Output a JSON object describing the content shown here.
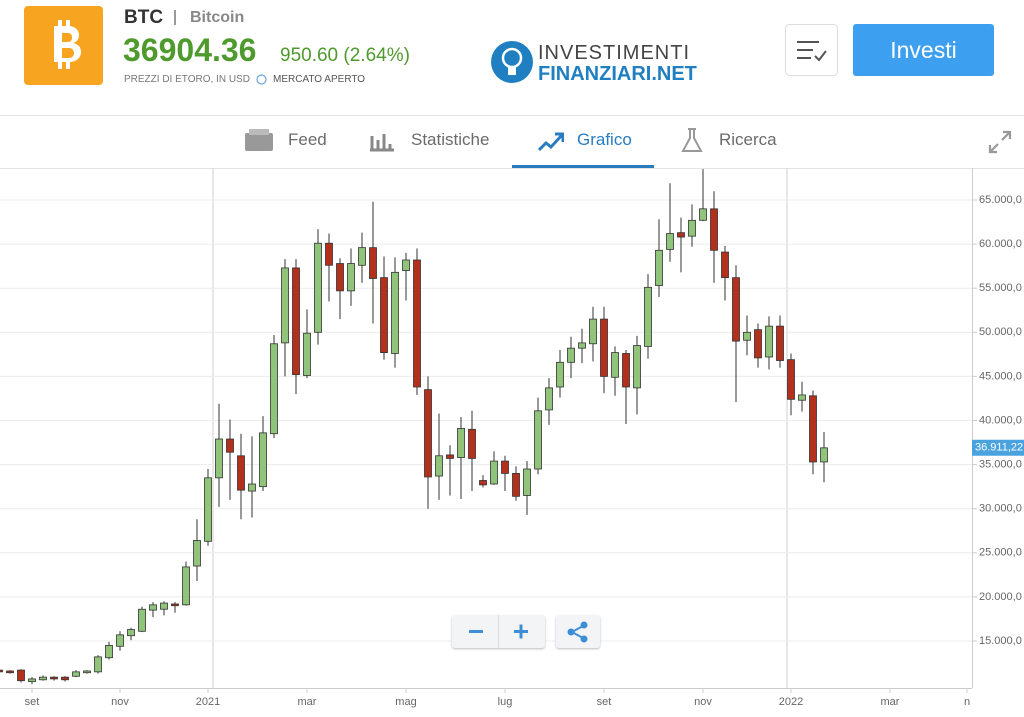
{
  "header": {
    "symbol": "BTC",
    "name": "Bitcoin",
    "price": "36904.36",
    "change": "950.60 (2.64%)",
    "source": "PREZZI DI ETORO, IN USD",
    "market": "MERCATO APERTO",
    "logo_top": "INVESTIMENTI",
    "logo_bottom": "FINANZIARI.NET",
    "button": "Investi"
  },
  "tabs": [
    "Feed",
    "Statistiche",
    "Grafico",
    "Ricerca"
  ],
  "chart_data": {
    "type": "candlestick",
    "up_color": "#8fc47a",
    "down_color": "#b3301c",
    "categories": [
      null,
      null,
      null,
      "set",
      null,
      null,
      null,
      null,
      null,
      null,
      null,
      "nov",
      null,
      null,
      null,
      null,
      null,
      null,
      null,
      "2021",
      null,
      null,
      null,
      null,
      null,
      null,
      null,
      null,
      "mar",
      null,
      null,
      null,
      null,
      null,
      null,
      null,
      null,
      "mag",
      null,
      null,
      null,
      null,
      null,
      null,
      null,
      null,
      "lug",
      null,
      null,
      null,
      null,
      null,
      null,
      null,
      null,
      "set",
      null,
      null,
      null,
      null,
      null,
      null,
      null,
      null,
      "nov",
      null,
      null,
      null,
      null,
      null,
      null,
      null,
      "2022",
      null,
      null,
      null,
      null,
      null,
      null,
      null,
      null,
      "mar",
      null,
      null,
      null,
      null,
      null,
      null,
      "n"
    ],
    "open": [
      11700,
      11600,
      11700,
      10400,
      10600,
      10900,
      10900,
      11000,
      11400,
      11500,
      13100,
      14400,
      15600,
      16100,
      18500,
      18600,
      19200,
      19100,
      23500,
      26300,
      33500,
      37900,
      36000,
      32000,
      32500,
      38500,
      48800,
      57300,
      45100,
      50000,
      60100,
      57800,
      54700,
      57600,
      59600,
      56200,
      47600,
      57000,
      58200,
      43500,
      33700,
      36100,
      35800,
      39000,
      33200,
      32800,
      35400,
      34000,
      31500,
      34500,
      41200,
      43800,
      46600,
      48200,
      48700,
      51500,
      44900,
      47600,
      43700,
      48400,
      55300,
      59400,
      61300,
      60900,
      62700,
      64000,
      59100,
      56200,
      49100,
      50300,
      47200,
      50700,
      46900,
      42300,
      42800,
      35300,
      null,
      null,
      null,
      null,
      null,
      null,
      null,
      null,
      null,
      null,
      null,
      null,
      null
    ],
    "high": [
      11800,
      11700,
      11800,
      10900,
      11100,
      11000,
      11000,
      11700,
      11700,
      13400,
      14900,
      16100,
      16500,
      18900,
      19400,
      19500,
      19400,
      24000,
      28800,
      34500,
      41900,
      40100,
      38500,
      38200,
      40500,
      49700,
      58300,
      58300,
      52600,
      61700,
      61200,
      58400,
      59500,
      61300,
      64800,
      58600,
      58500,
      59000,
      59500,
      45000,
      40800,
      37200,
      40400,
      41100,
      33800,
      36500,
      36000,
      34800,
      35400,
      42600,
      44800,
      48000,
      49500,
      50400,
      52900,
      52900,
      48400,
      48000,
      49600,
      56600,
      62800,
      66900,
      63000,
      64500,
      68500,
      66000,
      59800,
      57600,
      51900,
      51000,
      51800,
      51900,
      47600,
      44400,
      43400,
      38700,
      null,
      null,
      null,
      null,
      null,
      null,
      null,
      null,
      null,
      null,
      null,
      null,
      null
    ],
    "low": [
      11400,
      11300,
      10300,
      10100,
      10500,
      10500,
      10400,
      10900,
      11300,
      11300,
      12900,
      13900,
      15100,
      16000,
      17700,
      17900,
      18200,
      19000,
      21800,
      25800,
      30200,
      31000,
      28800,
      29000,
      32000,
      38000,
      45000,
      43000,
      44800,
      48600,
      53500,
      51500,
      53000,
      55600,
      51000,
      46900,
      46000,
      53600,
      42900,
      30000,
      31000,
      31500,
      31100,
      32000,
      32400,
      32700,
      32000,
      30900,
      29300,
      33900,
      39500,
      42600,
      44800,
      46500,
      46700,
      43100,
      42800,
      39600,
      40700,
      47000,
      54000,
      58000,
      56800,
      59700,
      62600,
      55600,
      53600,
      42100,
      47400,
      46000,
      45800,
      46000,
      40600,
      41000,
      33900,
      33000,
      null,
      null,
      null,
      null,
      null,
      null,
      null,
      null,
      null,
      null,
      null,
      null,
      null
    ],
    "close": [
      11500,
      11400,
      10500,
      10700,
      10900,
      10700,
      10600,
      11500,
      11600,
      13200,
      14500,
      15700,
      16300,
      18600,
      19100,
      19300,
      19000,
      23400,
      26400,
      33500,
      37900,
      36400,
      32100,
      32800,
      38600,
      48700,
      57300,
      45200,
      49900,
      60100,
      57600,
      54700,
      57800,
      59600,
      56100,
      47700,
      56800,
      58200,
      43800,
      33600,
      36000,
      35700,
      39100,
      35700,
      32700,
      35400,
      34000,
      31400,
      34500,
      41100,
      43700,
      46600,
      48200,
      48800,
      51500,
      45000,
      47700,
      43800,
      48500,
      55100,
      59300,
      61200,
      60800,
      62700,
      64000,
      59300,
      56200,
      49000,
      50000,
      47100,
      50700,
      46800,
      42400,
      42900,
      35300,
      36900,
      null,
      null,
      null,
      null,
      null,
      null,
      null,
      null,
      null,
      null,
      null,
      null,
      null
    ],
    "ylim": [
      9670,
      68630
    ],
    "yticks": [
      {
        "value": 15000,
        "label": "15.000,0"
      },
      {
        "value": 20000,
        "label": "20.000,0"
      },
      {
        "value": 25000,
        "label": "25.000,0"
      },
      {
        "value": 30000,
        "label": "30.000,0"
      },
      {
        "value": 35000,
        "label": "35.000,0"
      },
      {
        "value": 40000,
        "label": "40.000,0"
      },
      {
        "value": 45000,
        "label": "45.000,0"
      },
      {
        "value": 50000,
        "label": "50.000,0"
      },
      {
        "value": 55000,
        "label": "55.000,0"
      },
      {
        "value": 60000,
        "label": "60.000,0"
      },
      {
        "value": 65000,
        "label": "65.000,0"
      }
    ],
    "last_price": {
      "value": 36911.22,
      "label": "36.911,22"
    },
    "grid": true
  }
}
